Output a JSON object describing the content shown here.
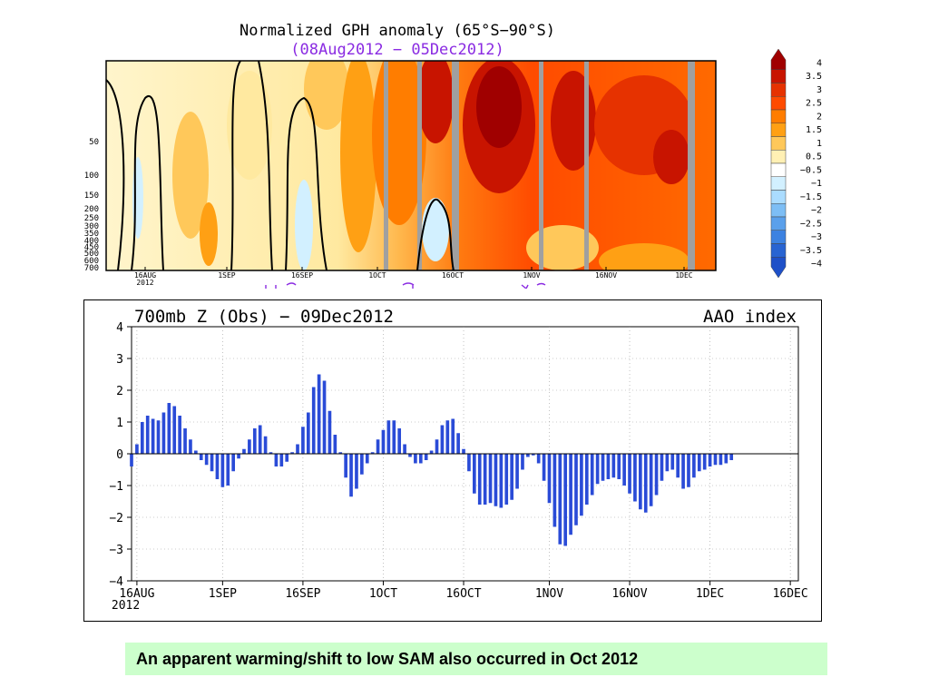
{
  "chart_data": [
    {
      "type": "heatmap",
      "title": "Normalized GPH anomaly (65°S−90°S)",
      "subtitle": "(08Aug2012 − 05Dec2012)",
      "y_tick_labels": [
        "50",
        "100",
        "150",
        "200",
        "250",
        "300",
        "350",
        "400",
        "450",
        "500",
        "600",
        "700"
      ],
      "x_tick_labels": [
        "16AUG\n2012",
        "1SEP",
        "16SEP",
        "1OCT",
        "16OCT",
        "1NOV",
        "16NOV",
        "1DEC"
      ],
      "colorbar_levels": [
        "4",
        "3.5",
        "3",
        "2.5",
        "2",
        "1.5",
        "1",
        "0.5",
        "−0.5",
        "−1",
        "−1.5",
        "−2",
        "−2.5",
        "−3",
        "−3.5",
        "−4"
      ],
      "colorbar_colors": [
        "#a00000",
        "#c81400",
        "#e63200",
        "#ff4b00",
        "#ff7d00",
        "#ffa014",
        "#ffc85a",
        "#fff0b4",
        "#ffffff",
        "#d2f0ff",
        "#aadcff",
        "#7dbef5",
        "#5aa0eb",
        "#3c82e1",
        "#2864d2",
        "#1e50c8"
      ],
      "zero_contour_color": "#000000",
      "missing_color": "#a0a0a0"
    },
    {
      "type": "bar",
      "title": "700mb Z (Obs) − 09Dec2012",
      "right_title": "AAO index",
      "ylim": [
        -4,
        4
      ],
      "y_ticks": [
        "4",
        "3",
        "2",
        "1",
        "0",
        "−1",
        "−2",
        "−3",
        "−4"
      ],
      "x_tick_labels": [
        "16AUG\n2012",
        "1SEP",
        "16SEP",
        "1OCT",
        "16OCT",
        "1NOV",
        "16NOV",
        "1DEC",
        "16DEC"
      ],
      "bar_color": "#2a4bd7",
      "start_date": "2012-08-15",
      "values": [
        -0.4,
        0.3,
        1.0,
        1.2,
        1.1,
        1.05,
        1.3,
        1.6,
        1.5,
        1.2,
        0.8,
        0.45,
        0.1,
        -0.2,
        -0.35,
        -0.55,
        -0.8,
        -1.05,
        -1.0,
        -0.55,
        -0.15,
        0.15,
        0.45,
        0.8,
        0.9,
        0.55,
        0.05,
        -0.4,
        -0.4,
        -0.25,
        0.05,
        0.3,
        0.85,
        1.3,
        2.1,
        2.5,
        2.3,
        1.35,
        0.6,
        0.05,
        -0.75,
        -1.35,
        -1.1,
        -0.65,
        -0.3,
        0.05,
        0.45,
        0.75,
        1.05,
        1.05,
        0.8,
        0.3,
        -0.1,
        -0.3,
        -0.3,
        -0.2,
        0.1,
        0.45,
        0.9,
        1.05,
        1.1,
        0.65,
        0.15,
        -0.55,
        -1.25,
        -1.6,
        -1.6,
        -1.55,
        -1.65,
        -1.7,
        -1.6,
        -1.45,
        -1.1,
        -0.5,
        -0.1,
        -0.05,
        -0.3,
        -0.85,
        -1.55,
        -2.3,
        -2.85,
        -2.9,
        -2.55,
        -2.25,
        -1.95,
        -1.6,
        -1.3,
        -0.95,
        -0.85,
        -0.8,
        -0.75,
        -0.8,
        -1.0,
        -1.25,
        -1.5,
        -1.75,
        -1.85,
        -1.65,
        -1.3,
        -0.85,
        -0.55,
        -0.5,
        -0.75,
        -1.1,
        -1.05,
        -0.75,
        -0.55,
        -0.5,
        -0.4,
        -0.35,
        -0.35,
        -0.3,
        -0.2
      ]
    }
  ],
  "caption": "An apparent warming/shift to low SAM also occurred in Oct 2012"
}
